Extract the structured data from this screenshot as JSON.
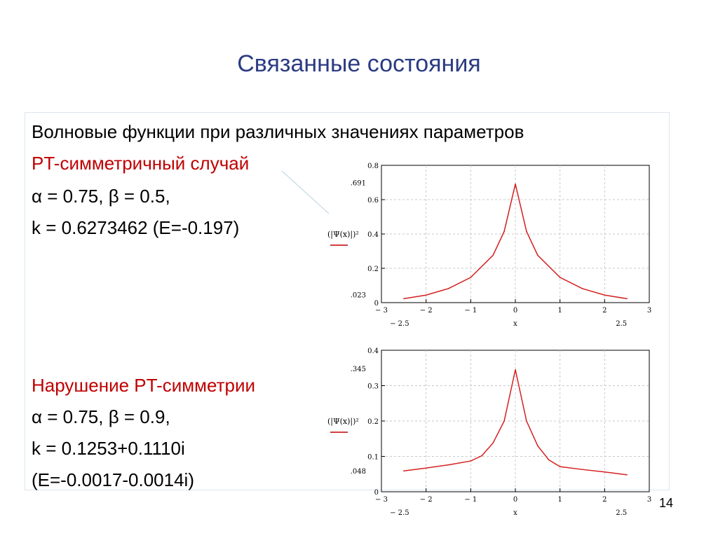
{
  "slide": {
    "title": "Связанные состояния",
    "page_number": "14"
  },
  "text": {
    "heading": "Волновые функции при различных значениях параметров",
    "case1_title": "PT-симметричный случай",
    "case1_params": "α = 0.75,  β = 0.5,",
    "case1_k": "k = 0.6273462 (E=-0.197)",
    "case2_title": "Нарушение PT-симметрии",
    "case2_params": "α = 0.75,  β = 0.9,",
    "case2_k": "k = 0.1253+0.1110i",
    "case2_E": "(E=-0.0017-0.0014i)"
  },
  "colors": {
    "title": "#2b3b82",
    "accent": "#c00000",
    "curve": "#d42020",
    "box_border": "#dde6ee"
  },
  "chart_data": [
    {
      "type": "line",
      "ylabel": "(|Ψ(x)|)²",
      "xlabel": "x",
      "xlim": [
        -3,
        3
      ],
      "ylim": [
        0,
        0.8
      ],
      "xticks": [
        "− 3",
        "− 2",
        "− 1",
        "0",
        "1",
        "2",
        "3"
      ],
      "yticks": [
        "0",
        "0.2",
        "0.4",
        "0.6",
        "0.8"
      ],
      "y_marker_top": ".691",
      "y_marker_bottom": ".023",
      "x_marker_left": "− 2.5",
      "x_marker_right": "2.5",
      "grid": true,
      "series": [
        {
          "x": [
            -2.5,
            -2.0,
            -1.5,
            -1.0,
            -0.5,
            -0.25,
            0,
            0.25,
            0.5,
            1.0,
            1.5,
            2.0,
            2.5
          ],
          "y": [
            0.023,
            0.044,
            0.082,
            0.147,
            0.276,
            0.415,
            0.691,
            0.415,
            0.276,
            0.147,
            0.082,
            0.044,
            0.023
          ]
        }
      ]
    },
    {
      "type": "line",
      "ylabel": "(|Ψ(x)|)²",
      "xlabel": "x",
      "xlim": [
        -3,
        3
      ],
      "ylim": [
        0,
        0.4
      ],
      "xticks": [
        "− 3",
        "− 2",
        "− 1",
        "0",
        "1",
        "2",
        "3"
      ],
      "yticks": [
        "0",
        "0.1",
        "0.2",
        "0.3",
        "0.4"
      ],
      "y_marker_top": ".345",
      "y_marker_bottom": ".048",
      "x_marker_left": "− 2.5",
      "x_marker_right": "2.5",
      "grid": true,
      "series": [
        {
          "x": [
            -2.5,
            -2.0,
            -1.5,
            -1.0,
            -0.75,
            -0.5,
            -0.25,
            0,
            0.25,
            0.5,
            0.75,
            1.0,
            1.5,
            2.0,
            2.5
          ],
          "y": [
            0.059,
            0.067,
            0.076,
            0.087,
            0.102,
            0.138,
            0.2,
            0.345,
            0.2,
            0.13,
            0.09,
            0.071,
            0.063,
            0.056,
            0.048
          ]
        }
      ]
    }
  ]
}
